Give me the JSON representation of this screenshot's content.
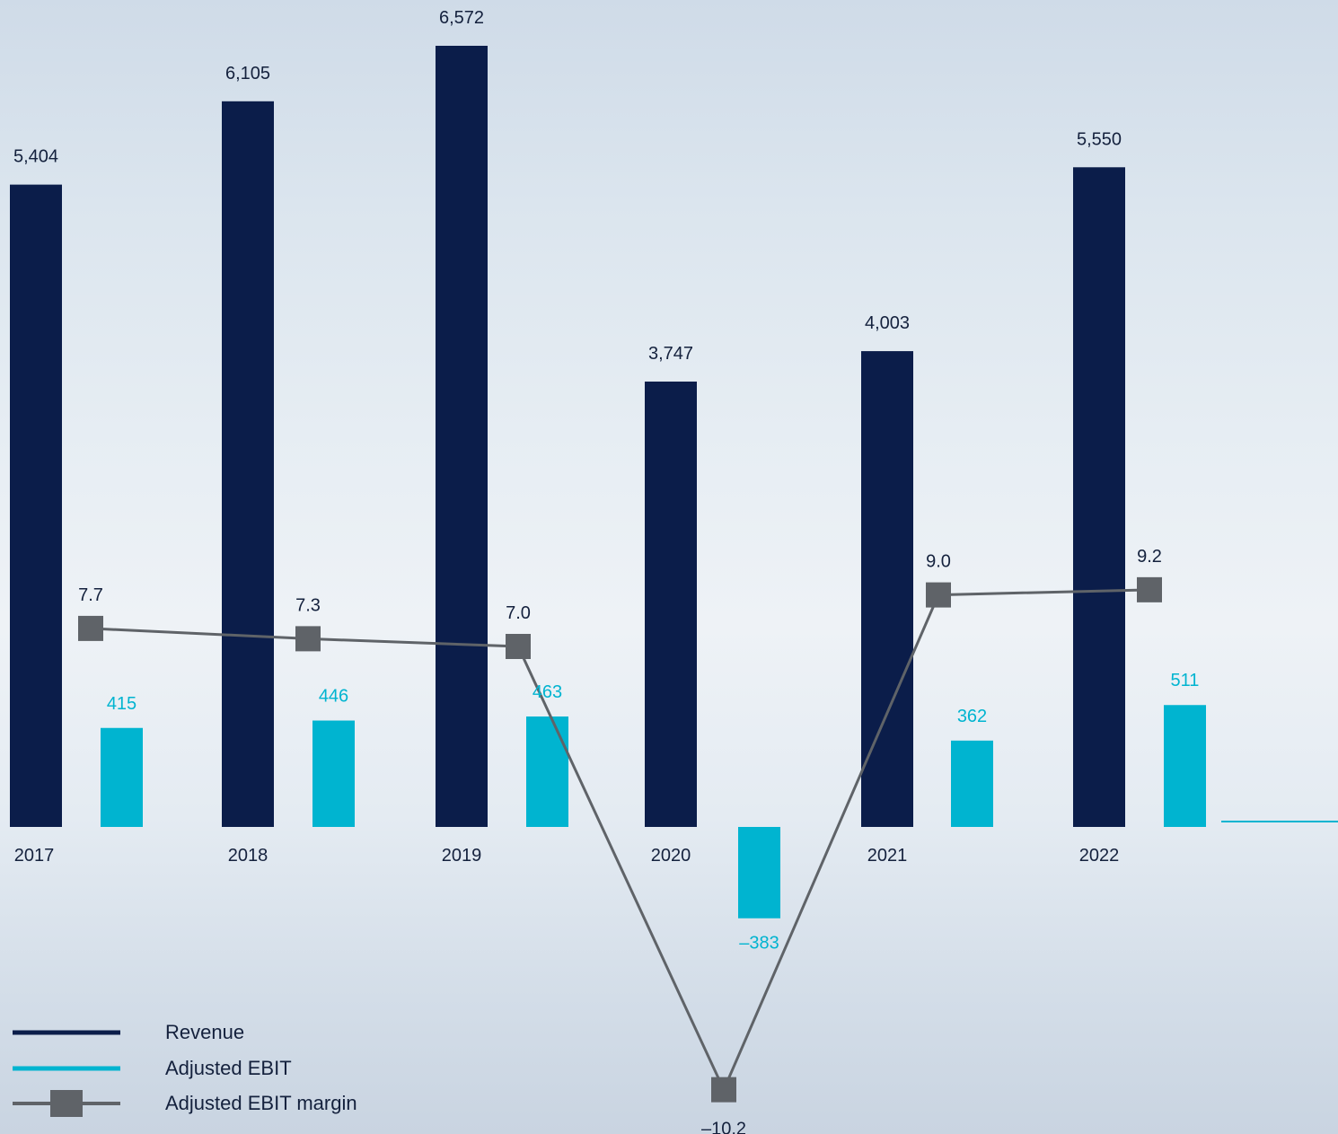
{
  "chart_data": {
    "type": "bar",
    "categories": [
      "2017",
      "2018",
      "2019",
      "2020",
      "2021",
      "2022"
    ],
    "series": [
      {
        "name": "Revenue",
        "type": "bar",
        "values": [
          5404,
          6105,
          6572,
          3747,
          4003,
          5550
        ],
        "labels": [
          "5,404",
          "6,105",
          "6,572",
          "3,747",
          "4,003",
          "5,550"
        ]
      },
      {
        "name": "Adjusted EBIT",
        "type": "bar",
        "values": [
          415,
          446,
          463,
          -383,
          362,
          511
        ],
        "labels": [
          "415",
          "446",
          "463",
          "–383",
          "362",
          "511"
        ]
      },
      {
        "name": "Adjusted EBIT margin",
        "type": "line",
        "marker": "square",
        "values": [
          7.7,
          7.3,
          7.0,
          -10.2,
          9.0,
          9.2
        ],
        "labels": [
          "7.7",
          "7.3",
          "7.0",
          "–10.2",
          "9.0",
          "9.2"
        ]
      }
    ],
    "legend_position": "bottom-left",
    "grid": false,
    "colors": {
      "revenue": "#0b1d4a",
      "ebit": "#00b4d0",
      "margin": "#5f6368",
      "text": "#14213d"
    }
  }
}
